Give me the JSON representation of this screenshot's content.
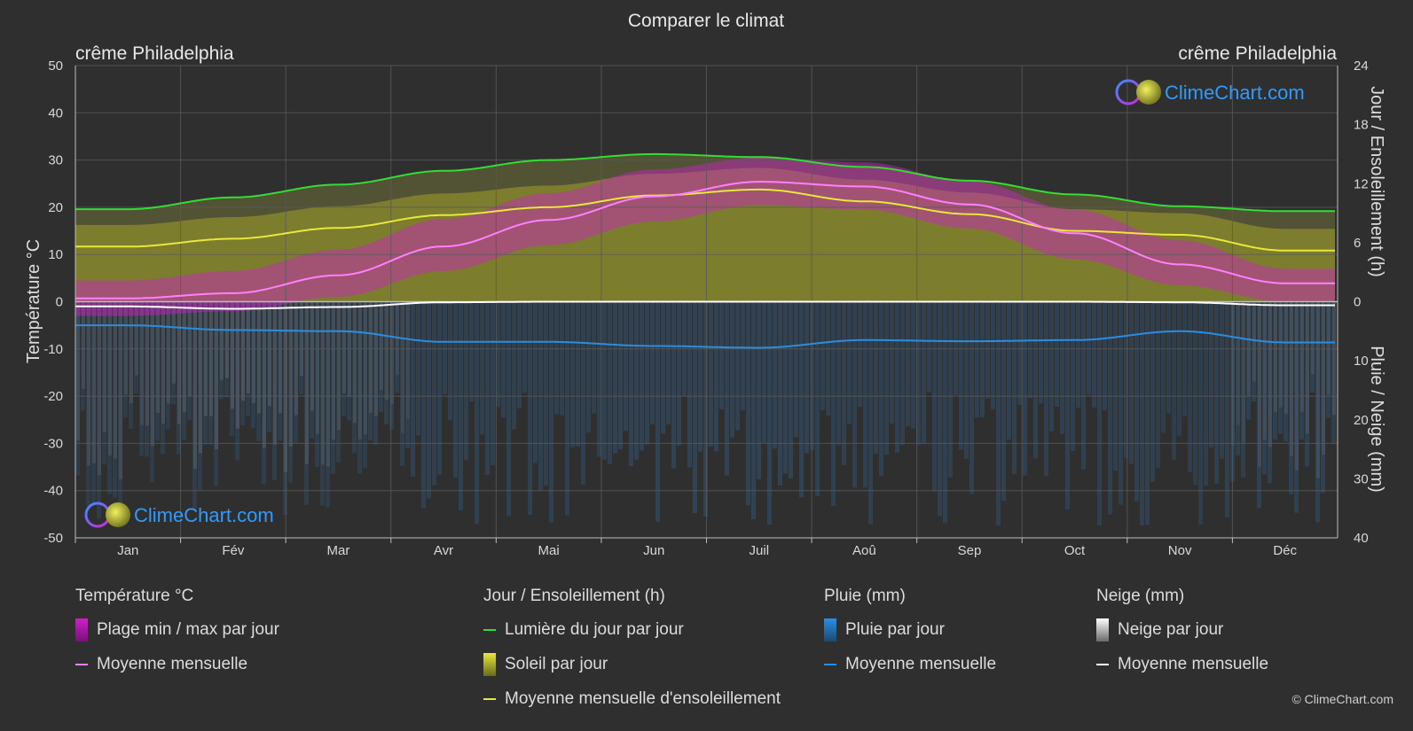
{
  "title": "Comparer le climat",
  "location_left": "crême Philadelphia",
  "location_right": "crême Philadelphia",
  "watermark": "ClimeChart.com",
  "copyright": "© ClimeChart.com",
  "colors": {
    "background": "#2f2f2f",
    "temp_range": "#d020c8",
    "temp_mean": "#ff80ff",
    "daylight": "#33dd33",
    "sunshine_fill": "#8c8c2c",
    "sunshine_mean": "#e8e83a",
    "rain": "#2a7fd0",
    "rain_mean": "#2b8de0",
    "snow": "#cfcfcf",
    "snow_mean": "#ffffff",
    "grid": "#5a5a5a",
    "brand": "#2e9bff"
  },
  "chart_data": {
    "type": "line",
    "months": [
      "Jan",
      "Fév",
      "Mar",
      "Avr",
      "Mai",
      "Jun",
      "Juil",
      "Aoû",
      "Sep",
      "Oct",
      "Nov",
      "Déc"
    ],
    "y_left": {
      "label": "Température °C",
      "min": -50,
      "max": 50,
      "ticks": [
        50,
        40,
        30,
        20,
        10,
        0,
        -10,
        -20,
        -30,
        -40,
        -50
      ]
    },
    "y_right_top": {
      "label": "Jour / Ensoleillement (h)",
      "min": 0,
      "max": 24,
      "ticks": [
        24,
        18,
        12,
        6,
        0
      ]
    },
    "y_right_bottom": {
      "label": "Pluie / Neige (mm)",
      "min": 0,
      "max": 40,
      "ticks": [
        0,
        10,
        20,
        30,
        40
      ]
    },
    "series": [
      {
        "name": "Lumière du jour par jour",
        "unit": "h",
        "values": [
          9.4,
          10.6,
          11.9,
          13.3,
          14.4,
          15.0,
          14.7,
          13.7,
          12.3,
          10.9,
          9.7,
          9.2
        ]
      },
      {
        "name": "Moyenne mensuelle d'ensoleillement",
        "unit": "h",
        "values": [
          5.6,
          6.4,
          7.5,
          8.8,
          9.6,
          10.8,
          11.4,
          10.2,
          8.9,
          7.2,
          6.8,
          5.2
        ]
      },
      {
        "name": "Moyenne mensuelle",
        "kind": "temperature",
        "unit": "°C",
        "values": [
          0.7,
          1.8,
          5.6,
          11.7,
          17.3,
          22.3,
          25.4,
          24.4,
          20.6,
          14.5,
          7.9,
          3.9
        ]
      },
      {
        "name": "Plage min / max par jour",
        "kind": "temperature_max",
        "unit": "°C",
        "values": [
          4.5,
          6.5,
          11.0,
          17.5,
          23.0,
          28.0,
          30.5,
          29.5,
          25.5,
          19.5,
          13.0,
          7.0
        ]
      },
      {
        "name": "Plage min / max par jour",
        "kind": "temperature_min",
        "unit": "°C",
        "values": [
          -3.0,
          -2.0,
          1.0,
          6.5,
          12.0,
          17.0,
          20.5,
          19.5,
          15.5,
          9.0,
          3.5,
          0.0
        ]
      },
      {
        "name": "Moyenne mensuelle",
        "kind": "rain",
        "unit": "mm",
        "values": [
          4.0,
          4.8,
          5.0,
          6.8,
          6.8,
          7.5,
          7.8,
          6.5,
          6.7,
          6.5,
          5.0,
          6.9
        ]
      },
      {
        "name": "Moyenne mensuelle",
        "kind": "snow",
        "unit": "mm",
        "values": [
          0.8,
          1.2,
          0.9,
          0.1,
          0.0,
          0.0,
          0.0,
          0.0,
          0.0,
          0.0,
          0.1,
          0.6
        ]
      }
    ]
  },
  "legend": {
    "temperature": {
      "title": "Température °C",
      "range_label": "Plage min / max par jour",
      "mean_label": "Moyenne mensuelle"
    },
    "sun": {
      "title": "Jour / Ensoleillement (h)",
      "daylight_label": "Lumière du jour par jour",
      "sunshine_label": "Soleil par jour",
      "sunshine_mean_label": "Moyenne mensuelle d'ensoleillement"
    },
    "rain": {
      "title": "Pluie (mm)",
      "rain_label": "Pluie par jour",
      "mean_label": "Moyenne mensuelle"
    },
    "snow": {
      "title": "Neige (mm)",
      "snow_label": "Neige par jour",
      "mean_label": "Moyenne mensuelle"
    }
  }
}
